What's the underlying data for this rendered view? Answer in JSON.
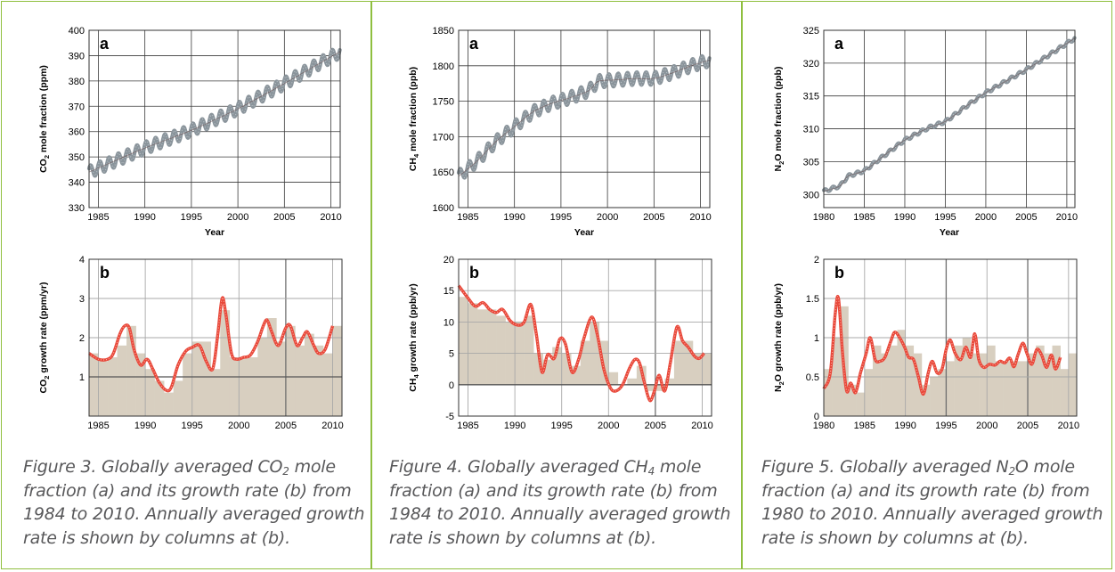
{
  "colors": {
    "frame": "#8fbf3f",
    "observations": "#8a949b",
    "growth_line": "#e8483a",
    "growth_bars": "#d8cfc0",
    "grid": "#8c8c8c",
    "caption_text": "#58585a"
  },
  "chart_data": [
    {
      "id": "co2_a",
      "type": "line",
      "panel_label": "a",
      "ylabel": "CO2 mole fraction (ppm)",
      "ylabel_main": "CO",
      "ylabel_sub": "2",
      "ylabel_rest": " mole fraction (ppm)",
      "xlabel": "Year",
      "xlim": [
        1984,
        2011
      ],
      "ylim": [
        330,
        400
      ],
      "xticks": [
        1985,
        1990,
        1995,
        2000,
        2005,
        2010
      ],
      "yticks": [
        330,
        340,
        350,
        360,
        370,
        380,
        390,
        400
      ],
      "series": [
        {
          "kind": "observations",
          "seasonal_amplitude": 2.5,
          "start": 1984,
          "end": 2011,
          "anchors": [
            [
              1984,
              344.0
            ],
            [
              1990,
              353.5
            ],
            [
              1995,
              360.5
            ],
            [
              2000,
              369.0
            ],
            [
              2005,
              379.0
            ],
            [
              2010,
              389.5
            ],
            [
              2011,
              391.5
            ]
          ]
        }
      ]
    },
    {
      "id": "co2_b",
      "type": "bar+line",
      "panel_label": "b",
      "ylabel": "CO2 growth rate (ppm/yr)",
      "ylabel_main": "CO",
      "ylabel_sub": "2",
      "ylabel_rest": " growth rate (ppm/yr)",
      "xlim": [
        1984,
        2011
      ],
      "ylim": [
        0,
        4
      ],
      "xticks": [
        1985,
        1990,
        1995,
        2000,
        2005,
        2010
      ],
      "yticks": [
        1,
        2,
        3,
        4
      ],
      "bars": {
        "years": [
          1984,
          1985,
          1986,
          1987,
          1988,
          1989,
          1990,
          1991,
          1992,
          1993,
          1994,
          1995,
          1996,
          1997,
          1998,
          1999,
          2000,
          2001,
          2002,
          2003,
          2004,
          2005,
          2006,
          2007,
          2008,
          2009,
          2010
        ],
        "values": [
          1.6,
          1.4,
          1.5,
          1.8,
          2.3,
          1.6,
          1.2,
          0.9,
          0.6,
          0.9,
          1.6,
          1.9,
          1.9,
          1.2,
          2.7,
          1.5,
          1.5,
          1.5,
          2.0,
          2.5,
          1.9,
          2.3,
          1.8,
          2.1,
          1.8,
          1.6,
          2.3
        ]
      },
      "line": [
        [
          1984,
          1.6
        ],
        [
          1985,
          1.45
        ],
        [
          1986,
          1.45
        ],
        [
          1986.6,
          1.6
        ],
        [
          1987.3,
          2.1
        ],
        [
          1987.8,
          2.3
        ],
        [
          1988.3,
          2.25
        ],
        [
          1988.8,
          1.7
        ],
        [
          1989.5,
          1.3
        ],
        [
          1990.2,
          1.45
        ],
        [
          1990.8,
          1.2
        ],
        [
          1991.5,
          0.85
        ],
        [
          1992.3,
          0.65
        ],
        [
          1992.8,
          0.75
        ],
        [
          1993.5,
          1.3
        ],
        [
          1994.3,
          1.65
        ],
        [
          1995,
          1.75
        ],
        [
          1995.8,
          1.8
        ],
        [
          1996.5,
          1.4
        ],
        [
          1997.2,
          1.2
        ],
        [
          1997.7,
          2.0
        ],
        [
          1998.2,
          3.0
        ],
        [
          1998.6,
          2.6
        ],
        [
          1999.2,
          1.6
        ],
        [
          1999.8,
          1.45
        ],
        [
          2000.5,
          1.5
        ],
        [
          2001.2,
          1.55
        ],
        [
          2002,
          1.9
        ],
        [
          2002.6,
          2.3
        ],
        [
          2003,
          2.45
        ],
        [
          2003.5,
          2.15
        ],
        [
          2004.2,
          1.8
        ],
        [
          2005,
          2.25
        ],
        [
          2005.5,
          2.3
        ],
        [
          2006.2,
          1.8
        ],
        [
          2006.8,
          2.0
        ],
        [
          2007.3,
          2.15
        ],
        [
          2008,
          1.8
        ],
        [
          2008.5,
          1.6
        ],
        [
          2009.2,
          1.7
        ],
        [
          2010,
          2.3
        ]
      ]
    },
    {
      "id": "ch4_a",
      "type": "line",
      "panel_label": "a",
      "ylabel": "CH4 mole fraction (ppb)",
      "ylabel_main": "CH",
      "ylabel_sub": "4",
      "ylabel_rest": " mole fraction (ppb)",
      "xlabel": "Year",
      "xlim": [
        1984,
        2011
      ],
      "ylim": [
        1600,
        1850
      ],
      "xticks": [
        1985,
        1990,
        1995,
        2000,
        2005,
        2010
      ],
      "yticks": [
        1600,
        1650,
        1700,
        1750,
        1800,
        1850
      ],
      "series": [
        {
          "kind": "observations",
          "seasonal_amplitude": 9,
          "start": 1984,
          "end": 2011,
          "anchors": [
            [
              1984,
              1644
            ],
            [
              1986,
              1666
            ],
            [
              1988,
              1693
            ],
            [
              1990,
              1714
            ],
            [
              1992,
              1735
            ],
            [
              1994,
              1747
            ],
            [
              1996,
              1755
            ],
            [
              1998,
              1765
            ],
            [
              1999,
              1778
            ],
            [
              2001,
              1780
            ],
            [
              2003,
              1782
            ],
            [
              2005,
              1782
            ],
            [
              2007,
              1790
            ],
            [
              2009,
              1800
            ],
            [
              2011,
              1808
            ]
          ]
        }
      ]
    },
    {
      "id": "ch4_b",
      "type": "bar+line",
      "panel_label": "b",
      "ylabel": "CH4 growth rate (ppb/yr)",
      "ylabel_main": "CH",
      "ylabel_sub": "4",
      "ylabel_rest": " growth rate (ppb/yr)",
      "xlim": [
        1984,
        2011
      ],
      "ylim": [
        -5,
        20
      ],
      "xticks": [
        1985,
        1990,
        1995,
        2000,
        2005,
        2010
      ],
      "yticks": [
        -5,
        0,
        5,
        10,
        15,
        20
      ],
      "bars": {
        "years": [
          1984,
          1985,
          1986,
          1987,
          1988,
          1989,
          1990,
          1991,
          1992,
          1993,
          1994,
          1995,
          1996,
          1997,
          1998,
          1999,
          2000,
          2001,
          2002,
          2003,
          2004,
          2005,
          2006,
          2007,
          2008,
          2009,
          2010
        ],
        "values": [
          14,
          13,
          12,
          12,
          11,
          10,
          10,
          11,
          5,
          4,
          6,
          5,
          3,
          7,
          10,
          7,
          2,
          0,
          1,
          3,
          -1,
          -1,
          1,
          7,
          7,
          5,
          5
        ]
      },
      "line": [
        [
          1984,
          15.8
        ],
        [
          1985,
          13.8
        ],
        [
          1985.8,
          12.5
        ],
        [
          1986.6,
          13.1
        ],
        [
          1987.3,
          12.0
        ],
        [
          1988,
          11.5
        ],
        [
          1988.7,
          12.0
        ],
        [
          1989.5,
          10.2
        ],
        [
          1990.3,
          9.5
        ],
        [
          1991,
          10.0
        ],
        [
          1991.7,
          12.8
        ],
        [
          1992.3,
          8.0
        ],
        [
          1992.9,
          2.0
        ],
        [
          1993.5,
          4.8
        ],
        [
          1994.2,
          4.2
        ],
        [
          1994.8,
          7.3
        ],
        [
          1995.4,
          6.5
        ],
        [
          1996.1,
          2.0
        ],
        [
          1996.8,
          4.0
        ],
        [
          1997.4,
          7.5
        ],
        [
          1998.2,
          10.8
        ],
        [
          1998.8,
          8.0
        ],
        [
          1999.5,
          2.5
        ],
        [
          2000.2,
          -0.5
        ],
        [
          2000.8,
          -1.0
        ],
        [
          2001.5,
          0.0
        ],
        [
          2002.2,
          2.5
        ],
        [
          2002.8,
          4.0
        ],
        [
          2003.3,
          3.5
        ],
        [
          2003.8,
          0.5
        ],
        [
          2004.4,
          -2.5
        ],
        [
          2004.9,
          -1.0
        ],
        [
          2005.4,
          1.5
        ],
        [
          2006,
          -1.0
        ],
        [
          2006.6,
          3.5
        ],
        [
          2007.3,
          9.2
        ],
        [
          2007.9,
          7.0
        ],
        [
          2008.5,
          6.0
        ],
        [
          2009.2,
          4.5
        ],
        [
          2009.7,
          4.2
        ],
        [
          2010.2,
          5.0
        ]
      ]
    },
    {
      "id": "n2o_a",
      "type": "line",
      "panel_label": "a",
      "ylabel": "N2O mole fraction (ppb)",
      "ylabel_main": "N",
      "ylabel_sub": "2",
      "ylabel_rest": "O mole fraction (ppb)",
      "xlabel": "Year",
      "xlim": [
        1980,
        2011
      ],
      "ylim": [
        298,
        325
      ],
      "xticks": [
        1980,
        1985,
        1990,
        1995,
        2000,
        2005,
        2010
      ],
      "yticks": [
        300,
        305,
        310,
        315,
        320,
        325
      ],
      "series": [
        {
          "kind": "observations",
          "seasonal_amplitude": 0.25,
          "start": 1980,
          "end": 2011,
          "anchors": [
            [
              1980,
              300.5
            ],
            [
              1982,
              301.3
            ],
            [
              1983,
              302.8
            ],
            [
              1985,
              303.6
            ],
            [
              1987,
              305.5
            ],
            [
              1990,
              308.3
            ],
            [
              1993,
              310.2
            ],
            [
              1995,
              311.1
            ],
            [
              1998,
              313.8
            ],
            [
              2000,
              315.5
            ],
            [
              2003,
              317.6
            ],
            [
              2005,
              319.0
            ],
            [
              2008,
              321.4
            ],
            [
              2011,
              323.8
            ]
          ]
        }
      ]
    },
    {
      "id": "n2o_b",
      "type": "bar+line",
      "panel_label": "b",
      "ylabel": "N2O growth rate (ppb/yr)",
      "ylabel_main": "N",
      "ylabel_sub": "2",
      "ylabel_rest": "O growth rate (ppb/yr)",
      "xlim": [
        1980,
        2011
      ],
      "ylim": [
        0,
        2
      ],
      "xticks": [
        1980,
        1985,
        1990,
        1995,
        2000,
        2005,
        2010
      ],
      "yticks": [
        0,
        0.5,
        1,
        1.5,
        2
      ],
      "bars": {
        "years": [
          1980,
          1981,
          1982,
          1983,
          1984,
          1985,
          1986,
          1987,
          1988,
          1989,
          1990,
          1991,
          1992,
          1993,
          1994,
          1995,
          1996,
          1997,
          1998,
          1999,
          2000,
          2001,
          2002,
          2003,
          2004,
          2005,
          2006,
          2007,
          2008,
          2009,
          2010
        ],
        "values": [
          0.6,
          1.0,
          1.4,
          0.4,
          0.3,
          0.6,
          0.9,
          0.8,
          0.9,
          1.1,
          0.9,
          0.8,
          0.4,
          0.5,
          0.6,
          0.7,
          0.9,
          1.0,
          0.8,
          0.8,
          0.9,
          0.7,
          0.7,
          0.7,
          0.7,
          0.8,
          0.9,
          0.8,
          0.9,
          0.6,
          0.8
        ]
      },
      "line": [
        [
          1980,
          0.35
        ],
        [
          1980.8,
          0.55
        ],
        [
          1981.4,
          1.3
        ],
        [
          1981.8,
          1.5
        ],
        [
          1982.3,
          0.8
        ],
        [
          1982.8,
          0.32
        ],
        [
          1983.3,
          0.42
        ],
        [
          1983.9,
          0.3
        ],
        [
          1984.5,
          0.55
        ],
        [
          1985.2,
          0.8
        ],
        [
          1985.7,
          1.0
        ],
        [
          1986.3,
          0.72
        ],
        [
          1986.9,
          0.7
        ],
        [
          1987.5,
          0.75
        ],
        [
          1988.2,
          0.95
        ],
        [
          1988.7,
          1.07
        ],
        [
          1989.3,
          1.0
        ],
        [
          1989.9,
          0.88
        ],
        [
          1990.4,
          0.75
        ],
        [
          1991,
          0.72
        ],
        [
          1991.6,
          0.5
        ],
        [
          1992.2,
          0.28
        ],
        [
          1992.8,
          0.55
        ],
        [
          1993.3,
          0.7
        ],
        [
          1993.9,
          0.55
        ],
        [
          1994.5,
          0.6
        ],
        [
          1995,
          0.85
        ],
        [
          1995.5,
          0.97
        ],
        [
          1996.1,
          0.8
        ],
        [
          1996.8,
          0.72
        ],
        [
          1997.4,
          0.88
        ],
        [
          1998,
          0.75
        ],
        [
          1998.5,
          1.05
        ],
        [
          1999,
          0.72
        ],
        [
          1999.6,
          0.62
        ],
        [
          2000.3,
          0.66
        ],
        [
          2001,
          0.65
        ],
        [
          2001.6,
          0.7
        ],
        [
          2002.2,
          0.68
        ],
        [
          2002.8,
          0.74
        ],
        [
          2003.3,
          0.63
        ],
        [
          2003.8,
          0.78
        ],
        [
          2004.4,
          0.93
        ],
        [
          2004.9,
          0.8
        ],
        [
          2005.5,
          0.66
        ],
        [
          2006.1,
          0.85
        ],
        [
          2006.7,
          0.78
        ],
        [
          2007.3,
          0.62
        ],
        [
          2007.9,
          0.78
        ],
        [
          2008.4,
          0.6
        ],
        [
          2009,
          0.75
        ]
      ]
    }
  ],
  "captions": [
    {
      "html": "Figure 3. Globally averaged CO<sub>2</sub> mole fraction (a) and its growth rate (b) from 1984 to 2010. Annually averaged growth rate is shown by columns at (b)."
    },
    {
      "html": "Figure 4. Globally averaged CH<sub>4</sub> mole fraction (a) and its growth rate (b) from 1984 to 2010. Annually averaged growth rate is shown by columns at (b)."
    },
    {
      "html": "Figure 5. Globally averaged N<sub>2</sub>O mole fraction (a) and its growth rate (b) from 1980 to 2010. Annually averaged growth rate is shown by columns at (b)."
    }
  ]
}
